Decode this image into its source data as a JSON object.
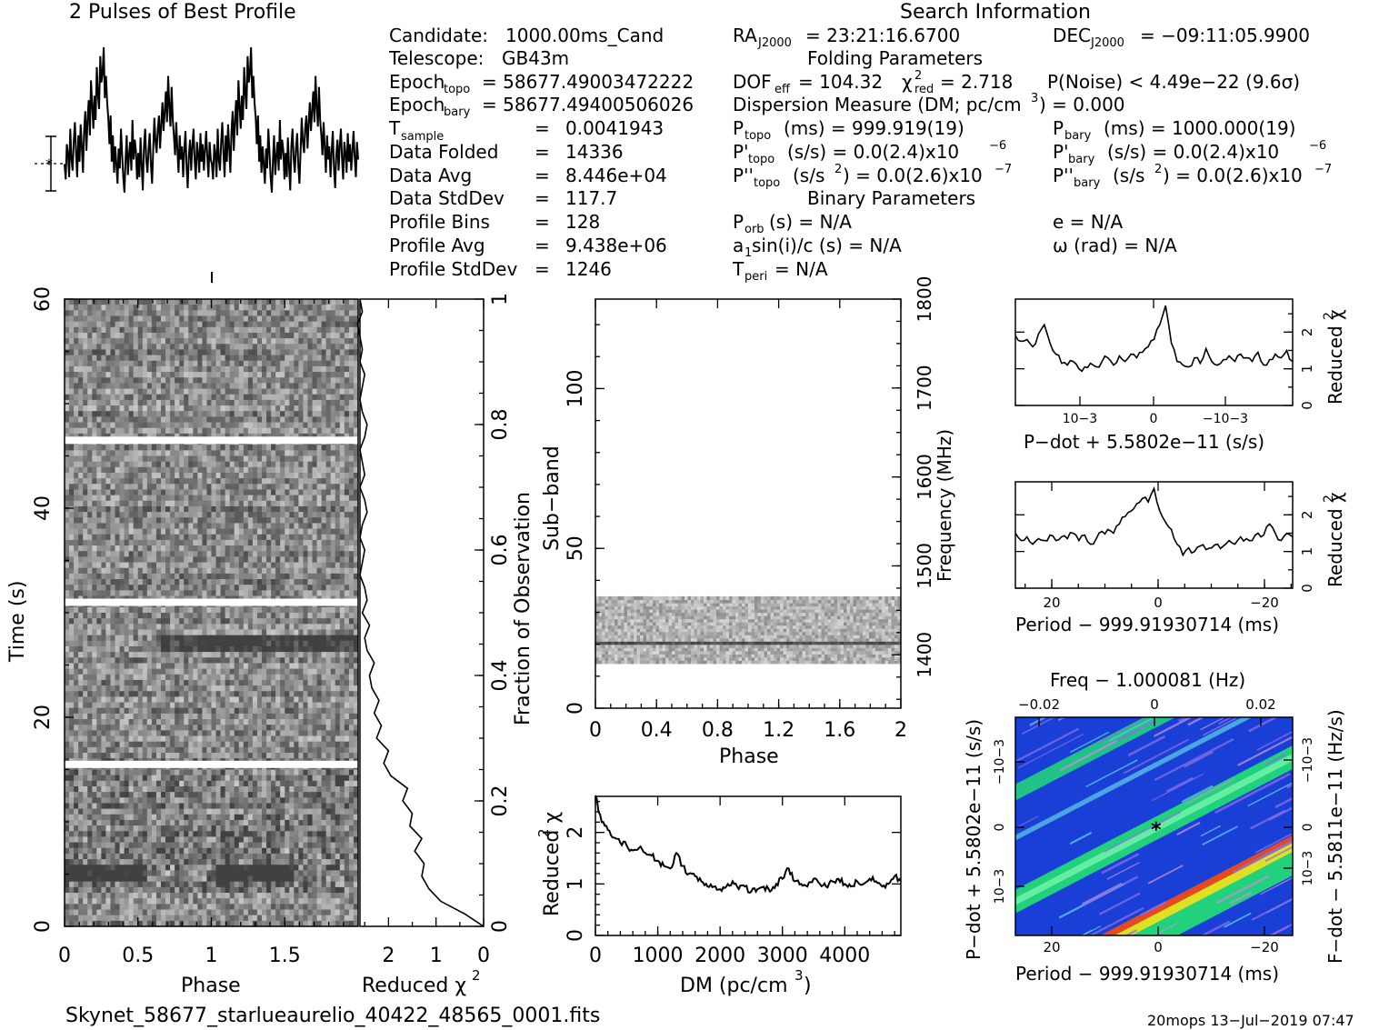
{
  "header": {
    "left_title": "2 Pulses of Best Profile",
    "search_title": "Search Information",
    "folding_title": "Folding Parameters",
    "binary_title": "Binary Parameters"
  },
  "info": {
    "candidate_label": "Candidate:",
    "candidate_value": "1000.00ms_Cand",
    "telescope_label": "Telescope:",
    "telescope_value": "GB43m",
    "epoch_topo_label": "Epoch",
    "epoch_topo_sub": "topo",
    "epoch_topo_value": "= 58677.49003472222",
    "epoch_bary_label": "Epoch",
    "epoch_bary_sub": "bary",
    "epoch_bary_value": "= 58677.49400506026",
    "tsample_label": "T",
    "tsample_sub": "sample",
    "tsample_eq": "=",
    "tsample_value": "0.0041943",
    "folded_label": "Data Folded",
    "folded_eq": "=",
    "folded_value": "14336",
    "avg_label": "Data Avg",
    "avg_eq": "=",
    "avg_value": "8.446e+04",
    "std_label": "Data StdDev",
    "std_eq": "=",
    "std_value": "117.7",
    "bins_label": "Profile Bins",
    "bins_eq": "=",
    "bins_value": "128",
    "pavg_label": "Profile Avg",
    "pavg_eq": "=",
    "pavg_value": "9.438e+06",
    "pstd_label": "Profile StdDev",
    "pstd_eq": "=",
    "pstd_value": "1246"
  },
  "search": {
    "ra_label": "RA",
    "ra_sub": "J2000",
    "ra_value": "= 23:21:16.6700",
    "dec_label": "DEC",
    "dec_sub": "J2000",
    "dec_value": "= −09:11:05.9900",
    "dof_label": "DOF",
    "dof_sub": "eff",
    "dof_value": "= 104.32",
    "chi_label": "χ",
    "chi_sup": "2",
    "chi_sub": "red",
    "chi_value": "= 2.718",
    "pnoise": "P(Noise) < 4.49e−22   (9.6σ)",
    "dm_text": "Dispersion Measure (DM; pc/cm",
    "dm_sup": "3",
    "dm_value": ") = 0.000",
    "ptopo_label": "P",
    "ptopo_sub": "topo",
    "ptopo_value": "(ms) =  999.919(19)",
    "pbary_label": "P",
    "pbary_sub": "bary",
    "pbary_value": "(ms) =  1000.000(19)",
    "pdtopo_label": "P'",
    "pdtopo_sub": "topo",
    "pdtopo_value": "(s/s) = 0.0(2.4)x10",
    "pdtopo_exp": "−6",
    "pdbary_label": "P'",
    "pdbary_sub": "bary",
    "pdbary_value": "(s/s) = 0.0(2.4)x10",
    "pdbary_exp": "−6",
    "pddtopo_label": "P''",
    "pddtopo_sub": "topo",
    "pddtopo_value": "(s/s",
    "pddtopo_sup": "2",
    "pddtopo_value2": ") = 0.0(2.6)x10",
    "pddtopo_exp": "−7",
    "pddbary_label": "P''",
    "pddbary_sub": "bary",
    "pddbary_value": "(s/s",
    "pddbary_sup": "2",
    "pddbary_value2": ") = 0.0(2.6)x10",
    "pddbary_exp": "−7",
    "porb_label": "P",
    "porb_sub": "orb",
    "porb_value": "(s) = N/A",
    "e_value": "e = N/A",
    "asini_label": "a",
    "asini_sub": "1",
    "asini_value": "sin(i)/c (s) = N/A",
    "omega_value": "ω (rad) = N/A",
    "tperi_label": "T",
    "tperi_sub": "peri",
    "tperi_value": "= N/A"
  },
  "footer": {
    "filename": "Skynet_58677_starlueaurelio_40422_48565_0001.fits",
    "stamp": "20mops  13−Jul−2019 07:47"
  },
  "chart_data": [
    {
      "type": "line",
      "panel": "profile",
      "title": "2 Pulses of Best Profile",
      "x_range": [
        0,
        2
      ],
      "y": [
        0.42,
        0.35,
        0.51,
        0.47,
        0.36,
        0.58,
        0.44,
        0.39,
        0.52,
        0.61,
        0.47,
        0.36,
        0.55,
        0.43,
        0.6,
        0.5,
        0.38,
        0.57,
        0.66,
        0.48,
        0.62,
        0.71,
        0.55,
        0.8,
        0.69,
        0.58,
        0.73,
        0.62,
        0.86,
        0.74,
        0.67,
        0.91,
        0.79,
        0.83,
        0.95,
        0.72,
        0.82,
        0.7,
        0.63,
        0.51,
        0.64,
        0.43,
        0.55,
        0.38,
        0.5,
        0.42,
        0.33,
        0.49,
        0.4,
        0.58,
        0.47,
        0.36,
        0.29,
        0.44,
        0.55,
        0.37,
        0.46,
        0.52,
        0.39,
        0.62,
        0.44,
        0.53,
        0.48,
        0.35,
        0.47,
        0.36,
        0.54,
        0.41,
        0.3,
        0.5,
        0.58,
        0.44,
        0.38,
        0.49,
        0.56,
        0.42,
        0.33,
        0.48,
        0.63,
        0.52,
        0.47,
        0.58,
        0.64,
        0.49,
        0.6,
        0.7,
        0.57,
        0.66,
        0.75,
        0.61,
        0.82,
        0.68,
        0.59,
        0.77,
        0.62,
        0.55,
        0.46,
        0.61,
        0.49,
        0.38,
        0.55,
        0.44,
        0.5,
        0.36,
        0.48,
        0.57,
        0.4,
        0.31,
        0.46,
        0.53,
        0.39,
        0.5,
        0.58,
        0.44,
        0.35,
        0.52,
        0.47,
        0.38,
        0.56,
        0.43,
        0.51,
        0.39,
        0.48,
        0.57,
        0.45,
        0.36,
        0.52,
        0.44
      ]
    },
    {
      "type": "heatmap",
      "panel": "time-phase",
      "xlabel": "Phase",
      "ylabel": "Time (s)",
      "x_range": [
        0,
        2
      ],
      "y_range": [
        0,
        60
      ],
      "x_ticks": [
        "0",
        "0.5",
        "1",
        "1.5"
      ],
      "y_ticks": [
        "0",
        "20",
        "40",
        "60"
      ],
      "right_ylabel": "Fraction of Observation",
      "right_y_ticks": [
        "0",
        "0.2",
        "0.4",
        "0.6",
        "0.8",
        "1"
      ],
      "gaps_time_s": [
        15.5,
        31.0,
        46.5
      ]
    },
    {
      "type": "line",
      "panel": "time-chi",
      "xlabel": "Reduced χ",
      "xlabel_sup": "2",
      "x_ticks": [
        "2",
        "1",
        "0"
      ],
      "x_range": [
        2.6,
        0
      ],
      "fraction": [
        0,
        0.02,
        0.04,
        0.06,
        0.08,
        0.1,
        0.12,
        0.14,
        0.16,
        0.18,
        0.2,
        0.22,
        0.24,
        0.26,
        0.28,
        0.3,
        0.32,
        0.34,
        0.36,
        0.38,
        0.4,
        0.42,
        0.44,
        0.46,
        0.48,
        0.5,
        0.52,
        0.54,
        0.56,
        0.58,
        0.6,
        0.62,
        0.64,
        0.66,
        0.68,
        0.7,
        0.72,
        0.74,
        0.76,
        0.78,
        0.8,
        0.82,
        0.84,
        0.86,
        0.88,
        0.9,
        0.92,
        0.94,
        0.96,
        0.98,
        1.0
      ],
      "chi": [
        0.0,
        0.4,
        0.9,
        1.15,
        1.3,
        1.25,
        1.45,
        1.3,
        1.55,
        1.5,
        1.7,
        1.6,
        1.95,
        2.1,
        2.0,
        2.25,
        2.15,
        2.3,
        2.2,
        2.35,
        2.4,
        2.3,
        2.45,
        2.5,
        2.4,
        2.55,
        2.45,
        2.5,
        2.6,
        2.55,
        2.5,
        2.6,
        2.55,
        2.45,
        2.5,
        2.6,
        2.5,
        2.55,
        2.6,
        2.5,
        2.45,
        2.55,
        2.6,
        2.55,
        2.5,
        2.6,
        2.55,
        2.6,
        2.65,
        2.55,
        2.6
      ]
    },
    {
      "type": "heatmap",
      "panel": "subband-phase",
      "xlabel": "Phase",
      "ylabel": "Sub−band",
      "x_range": [
        0,
        2
      ],
      "y_range": [
        0,
        128
      ],
      "x_ticks": [
        "0",
        "0.4",
        "0.8",
        "1.2",
        "1.6",
        "2"
      ],
      "y_ticks": [
        "0",
        "50",
        "100"
      ],
      "right_ylabel": "Frequency (MHz)",
      "right_y_ticks": [
        "1400",
        "1500",
        "1600",
        "1700",
        "1800"
      ],
      "occupied_subbands": [
        14,
        35
      ]
    },
    {
      "type": "line",
      "panel": "dm-chi",
      "xlabel": "DM (pc/cm",
      "xlabel_sup": "3",
      "ylabel": "Reduced χ",
      "ylabel_sup": "2",
      "x_range": [
        0,
        4900
      ],
      "y_range": [
        0,
        2.7
      ],
      "x_ticks": [
        "0",
        "1000",
        "2000",
        "3000",
        "4000"
      ],
      "y_ticks": [
        "0",
        "1",
        "2"
      ],
      "x": [
        0,
        100,
        200,
        300,
        400,
        500,
        600,
        700,
        800,
        900,
        1000,
        1100,
        1200,
        1300,
        1400,
        1500,
        1600,
        1700,
        1800,
        1900,
        2000,
        2100,
        2200,
        2300,
        2400,
        2500,
        2600,
        2700,
        2800,
        2900,
        3000,
        3100,
        3200,
        3300,
        3400,
        3500,
        3600,
        3700,
        3800,
        3900,
        4000,
        4100,
        4200,
        4300,
        4400,
        4500,
        4600,
        4700,
        4800,
        4900
      ],
      "y": [
        2.718,
        2.2,
        2.05,
        1.9,
        1.8,
        1.75,
        1.65,
        1.7,
        1.6,
        1.55,
        1.45,
        1.35,
        1.3,
        1.6,
        1.35,
        1.2,
        1.15,
        1.05,
        0.95,
        0.95,
        0.9,
        0.95,
        1.05,
        0.9,
        0.95,
        0.85,
        0.9,
        0.95,
        0.85,
        1.0,
        1.1,
        1.3,
        1.05,
        1.0,
        0.95,
        1.1,
        1.0,
        0.95,
        1.05,
        1.1,
        1.0,
        0.95,
        1.05,
        1.0,
        1.1,
        1.05,
        0.95,
        1.0,
        1.15,
        1.05
      ]
    },
    {
      "type": "line",
      "panel": "pdot-chi",
      "xlabel": "P−dot + 5.5802e−11 (s/s)",
      "ylabel": "Reduced χ",
      "ylabel_sup": "2",
      "x_range": [
        -0.0024,
        0.0024
      ],
      "y_range": [
        0,
        2.9
      ],
      "x_ticks": [
        "10−3",
        "0",
        "−10−3"
      ],
      "y_ticks": [
        "0",
        "1",
        "2"
      ],
      "y": [
        1.9,
        1.75,
        1.8,
        1.6,
        1.95,
        2.2,
        1.7,
        1.4,
        1.15,
        1.1,
        1.2,
        1.0,
        1.05,
        1.15,
        1.05,
        1.2,
        1.3,
        1.1,
        1.35,
        1.2,
        1.4,
        1.3,
        1.45,
        1.6,
        1.8,
        2.2,
        2.718,
        1.7,
        1.2,
        1.1,
        1.05,
        1.3,
        1.15,
        1.55,
        1.2,
        1.1,
        1.25,
        1.35,
        1.2,
        1.4,
        1.3,
        1.2,
        1.45,
        1.1,
        1.25,
        1.4,
        1.3,
        1.5,
        1.2
      ]
    },
    {
      "type": "line",
      "panel": "period-chi",
      "xlabel": "Period − 999.91930714 (ms)",
      "ylabel": "Reduced χ",
      "ylabel_sup": "2",
      "x_range": [
        26,
        -26
      ],
      "y_range": [
        0,
        2.9
      ],
      "x_ticks": [
        "20",
        "0",
        "−20"
      ],
      "y_ticks": [
        "0",
        "1",
        "2"
      ],
      "y": [
        1.5,
        1.3,
        1.4,
        1.2,
        1.35,
        1.3,
        1.45,
        1.3,
        1.4,
        1.35,
        1.5,
        1.3,
        1.45,
        1.2,
        1.35,
        1.55,
        1.6,
        1.5,
        1.75,
        1.95,
        2.1,
        2.3,
        2.45,
        2.35,
        2.718,
        2.1,
        1.8,
        1.6,
        1.2,
        0.9,
        1.1,
        1.0,
        1.15,
        1.05,
        1.1,
        1.2,
        1.15,
        1.3,
        1.2,
        1.4,
        1.35,
        1.3,
        1.5,
        1.45,
        1.75,
        1.5,
        1.3,
        1.5,
        1.4
      ]
    },
    {
      "type": "heatmap",
      "panel": "period-pdot",
      "xlabel": "Period − 999.91930714 (ms)",
      "ylabel": "P−dot + 5.5802e−11 (s/s)",
      "top_xlabel": "Freq − 1.000081 (Hz)",
      "right_ylabel": "F−dot − 5.5811e−11 (Hz/s)",
      "x_ticks": [
        "20",
        "0",
        "−20"
      ],
      "top_x_ticks": [
        "−0.02",
        "0",
        "0.02"
      ],
      "y_ticks": [
        "10−3",
        "0",
        "−10−3"
      ],
      "right_y_ticks": [
        "−10−3",
        "0",
        "10−3"
      ],
      "best_marker": [
        0,
        0
      ]
    }
  ],
  "colors": {
    "ink": "#000000",
    "grey_bg": "#c8c8c8",
    "map_blue": "#1a3fd6",
    "map_green": "#22d977",
    "map_yellow": "#f2e11c",
    "map_red": "#e8301e"
  }
}
